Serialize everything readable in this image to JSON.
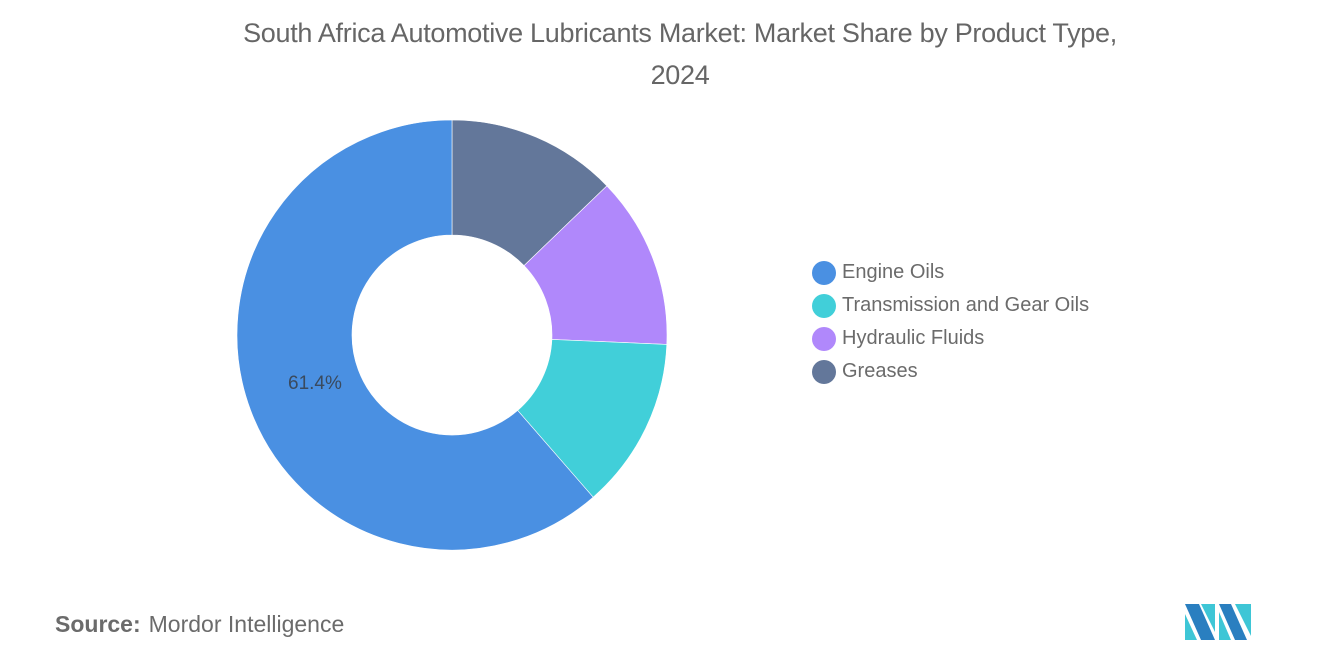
{
  "title": {
    "line1": "South Africa Automotive Lubricants Market: Market Share by Product Type,",
    "line2": "2024"
  },
  "chart_data": {
    "type": "pie",
    "subtype": "donut",
    "title": "South Africa Automotive Lubricants Market: Market Share by Product Type, 2024",
    "categories": [
      "Engine Oils",
      "Transmission and Gear Oils",
      "Hydraulic Fluids",
      "Greases"
    ],
    "values": [
      61.4,
      12.9,
      12.9,
      12.8
    ],
    "unit": "%",
    "colors": [
      "#4a90e2",
      "#41cfd9",
      "#b088fb",
      "#63779a"
    ],
    "data_labels": [
      {
        "category": "Engine Oils",
        "text": "61.4%"
      }
    ],
    "legend_position": "right",
    "start_angle_deg": 0,
    "direction": "counterclockwise-listing (Greases first clockwise from top)"
  },
  "donut": {
    "label": "61.4%"
  },
  "legend": {
    "items": [
      {
        "label": "Engine Oils",
        "color": "#4a90e2"
      },
      {
        "label": "Transmission and Gear Oils",
        "color": "#41cfd9"
      },
      {
        "label": "Hydraulic Fluids",
        "color": "#b088fb"
      },
      {
        "label": "Greases",
        "color": "#63779a"
      }
    ]
  },
  "footer": {
    "source_key": "Source:",
    "source_value": "Mordor Intelligence",
    "logo": "mordor-intelligence-logo"
  }
}
